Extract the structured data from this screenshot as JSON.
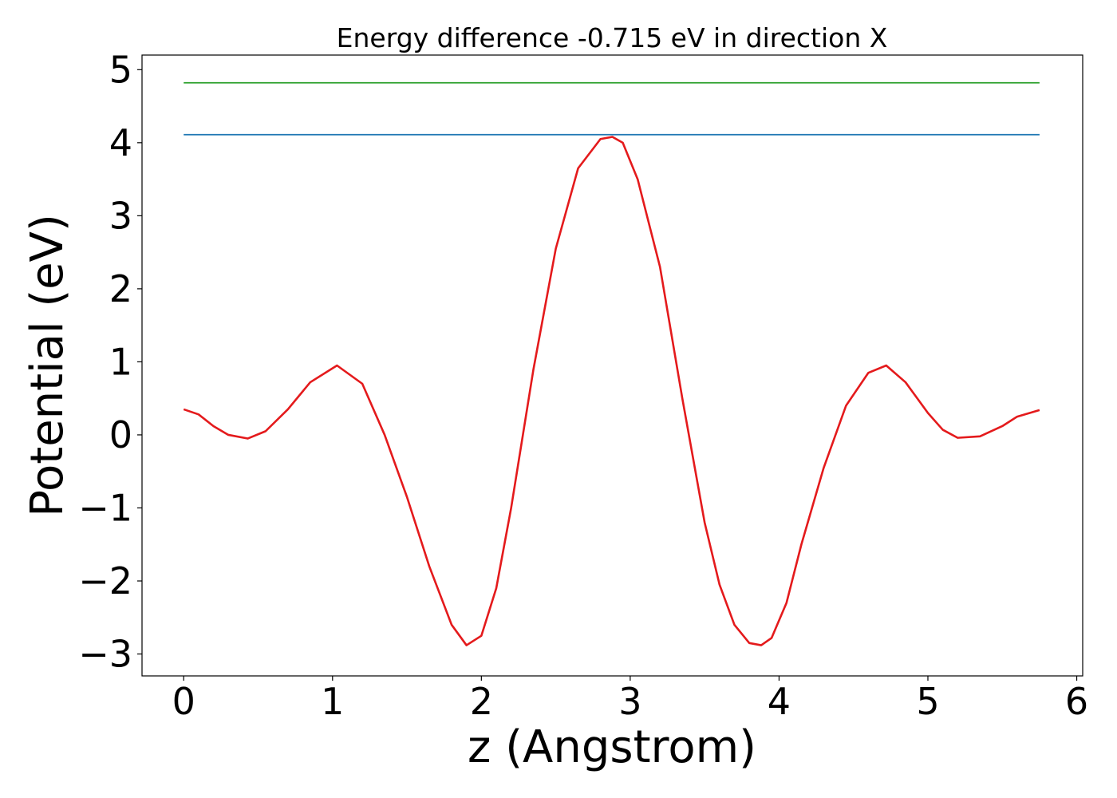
{
  "chart_data": {
    "type": "line",
    "title": "Energy difference -0.715 eV in direction X",
    "xlabel": "z (Angstrom)",
    "ylabel": "Potential (eV)",
    "xlim": [
      -0.28,
      6.04
    ],
    "ylim": [
      -3.3,
      5.2
    ],
    "x_ticks": [
      0,
      1,
      2,
      3,
      4,
      5,
      6
    ],
    "x_tick_labels": [
      "0",
      "1",
      "2",
      "3",
      "4",
      "5",
      "6"
    ],
    "y_ticks": [
      5,
      4,
      3,
      2,
      1,
      0,
      -1,
      -2,
      -3
    ],
    "y_tick_labels": [
      "5",
      "4",
      "3",
      "2",
      "1",
      "0",
      "−1",
      "−2",
      "−3"
    ],
    "grid": false,
    "legend": "none",
    "series": [
      {
        "color": "#2ca02c",
        "x": [
          0,
          5.75
        ],
        "y": [
          4.82,
          4.82
        ]
      },
      {
        "color": "#1f77b4",
        "x": [
          0,
          5.75
        ],
        "y": [
          4.11,
          4.11
        ]
      },
      {
        "color": "#e41a1c",
        "x": [
          0,
          0.1,
          0.2,
          0.3,
          0.43,
          0.55,
          0.7,
          0.85,
          1.03,
          1.2,
          1.35,
          1.5,
          1.65,
          1.8,
          1.9,
          2.0,
          2.1,
          2.2,
          2.35,
          2.5,
          2.65,
          2.8,
          2.88,
          2.95,
          3.05,
          3.2,
          3.35,
          3.5,
          3.6,
          3.7,
          3.8,
          3.88,
          3.95,
          4.05,
          4.15,
          4.3,
          4.45,
          4.6,
          4.72,
          4.85,
          5.0,
          5.1,
          5.2,
          5.35,
          5.5,
          5.6,
          5.75
        ],
        "y": [
          0.35,
          0.28,
          0.12,
          0.0,
          -0.05,
          0.05,
          0.35,
          0.72,
          0.95,
          0.7,
          0.0,
          -0.85,
          -1.8,
          -2.6,
          -2.88,
          -2.75,
          -2.1,
          -1.0,
          0.9,
          2.55,
          3.65,
          4.05,
          4.08,
          4.0,
          3.5,
          2.3,
          0.5,
          -1.2,
          -2.05,
          -2.6,
          -2.85,
          -2.88,
          -2.78,
          -2.3,
          -1.5,
          -0.45,
          0.4,
          0.85,
          0.95,
          0.72,
          0.3,
          0.07,
          -0.04,
          -0.02,
          0.12,
          0.25,
          0.34
        ]
      }
    ]
  }
}
